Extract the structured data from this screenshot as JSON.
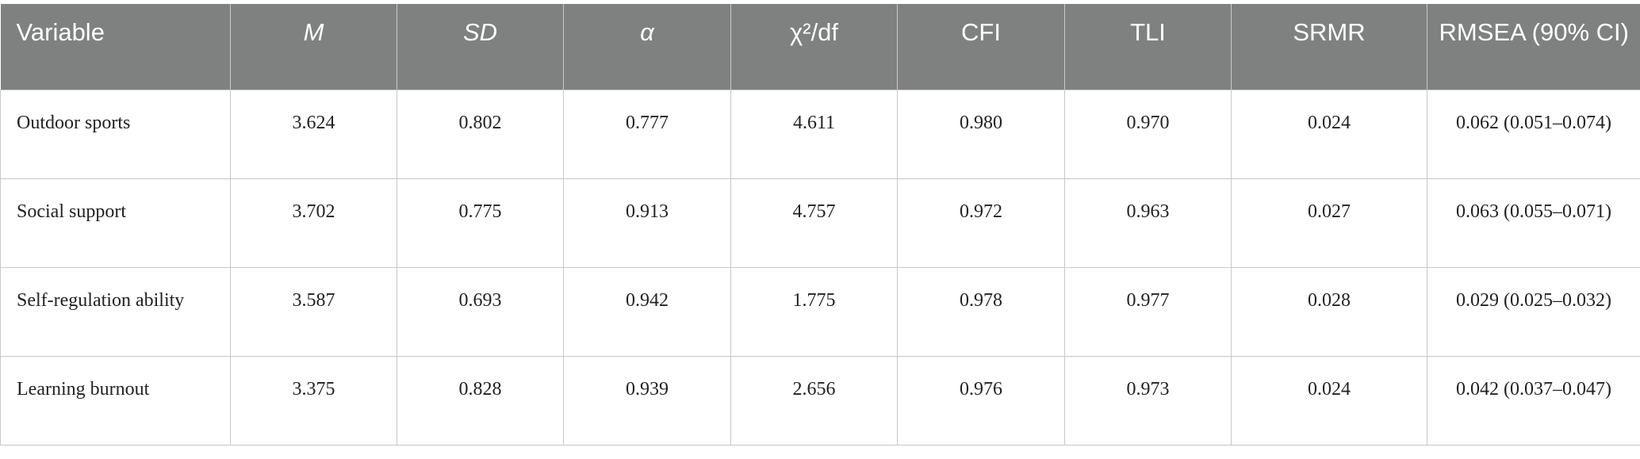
{
  "table": {
    "header": [
      "Variable",
      "M",
      "SD",
      "α",
      "χ²/df",
      "CFI",
      "TLI",
      "SRMR",
      "RMSEA (90% CI)"
    ],
    "rows": [
      [
        "Outdoor sports",
        "3.624",
        "0.802",
        "0.777",
        "4.611",
        "0.980",
        "0.970",
        "0.024",
        "0.062 (0.051–0.074)"
      ],
      [
        "Social support",
        "3.702",
        "0.775",
        "0.913",
        "4.757",
        "0.972",
        "0.963",
        "0.027",
        "0.063 (0.055–0.071)"
      ],
      [
        "Self-regulation ability",
        "3.587",
        "0.693",
        "0.942",
        "1.775",
        "0.978",
        "0.977",
        "0.028",
        "0.029 (0.025–0.032)"
      ],
      [
        "Learning burnout",
        "3.375",
        "0.828",
        "0.939",
        "2.656",
        "0.976",
        "0.973",
        "0.024",
        "0.042 (0.037–0.047)"
      ]
    ]
  }
}
